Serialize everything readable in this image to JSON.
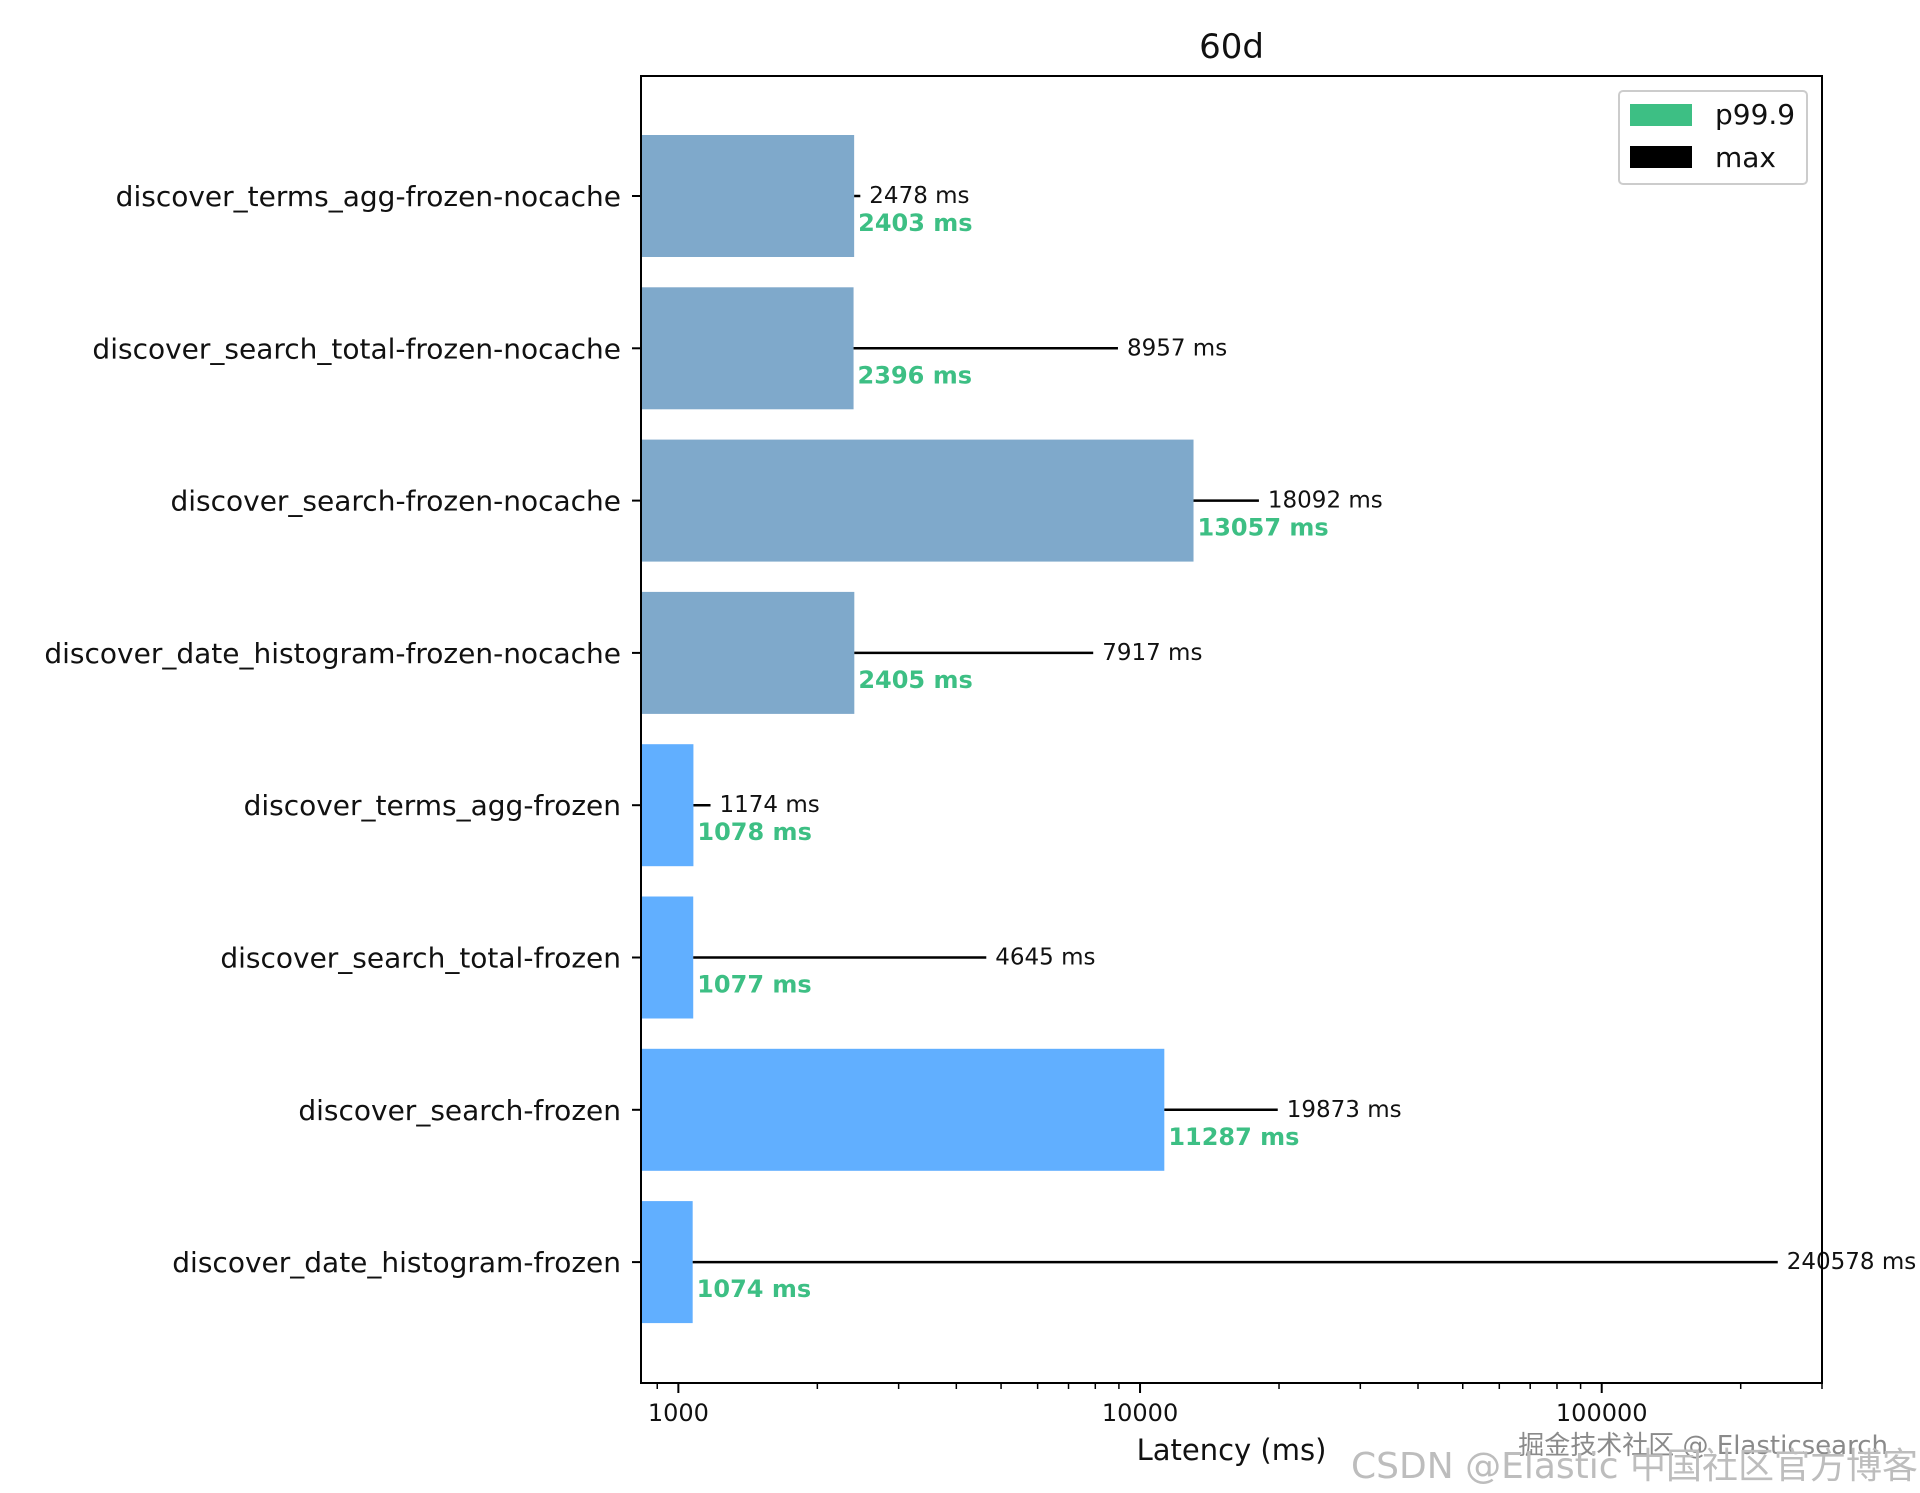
{
  "chart_data": {
    "type": "bar",
    "orientation": "horizontal",
    "title": "60d",
    "xlabel": "Latency (ms)",
    "ylabel": "",
    "xscale": "log",
    "xlim": [
      830,
      300000
    ],
    "xticks": [
      {
        "value": 1000,
        "label": "1000"
      },
      {
        "value": 10000,
        "label": "10000"
      },
      {
        "value": 100000,
        "label": "100000"
      }
    ],
    "grid": false,
    "legend": {
      "position": "top-right",
      "entries": [
        {
          "label": "p99.9",
          "color": "#3dbf84"
        },
        {
          "label": "max",
          "color": "#000000"
        }
      ]
    },
    "colors": {
      "nocache_bar": "#7fa9cb",
      "frozen_bar": "#61afff",
      "p999_text": "#3dbf84",
      "max_line": "#000000"
    },
    "categories": [
      "discover_terms_agg-frozen-nocache",
      "discover_search_total-frozen-nocache",
      "discover_search-frozen-nocache",
      "discover_date_histogram-frozen-nocache",
      "discover_terms_agg-frozen",
      "discover_search_total-frozen",
      "discover_search-frozen",
      "discover_date_histogram-frozen"
    ],
    "series": [
      {
        "name": "p99.9",
        "values": [
          2403,
          2396,
          13057,
          2405,
          1078,
          1077,
          11287,
          1074
        ],
        "labels": [
          "2403 ms",
          "2396 ms",
          "13057 ms",
          "2405 ms",
          "1078 ms",
          "1077 ms",
          "11287 ms",
          "1074 ms"
        ]
      },
      {
        "name": "max",
        "values": [
          2478,
          8957,
          18092,
          7917,
          1174,
          4645,
          19873,
          240578
        ],
        "labels": [
          "2478 ms",
          "8957 ms",
          "18092 ms",
          "7917 ms",
          "1174 ms",
          "4645 ms",
          "19873 ms",
          "240578 ms"
        ]
      }
    ],
    "bar_color_group": [
      "nocache",
      "nocache",
      "nocache",
      "nocache",
      "frozen",
      "frozen",
      "frozen",
      "frozen"
    ]
  },
  "watermark": {
    "line1": "掘金技术社区 @ Elasticsearch",
    "line2": "CSDN @Elastic 中国社区官方博客"
  }
}
